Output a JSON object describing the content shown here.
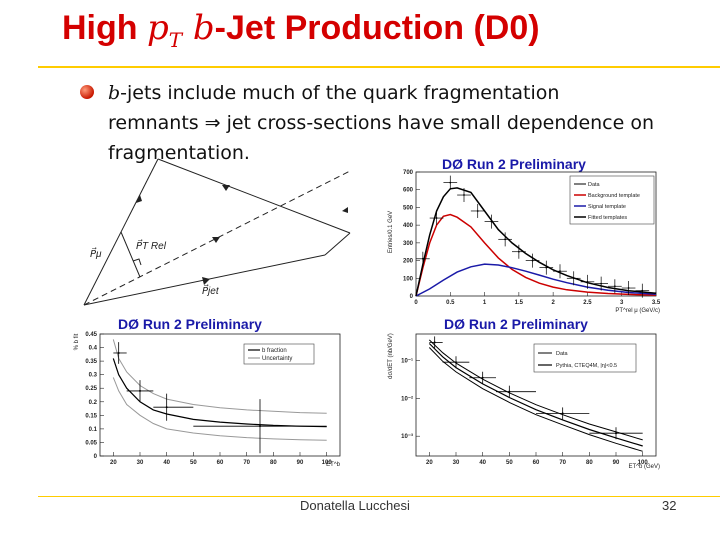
{
  "title": {
    "prefix": "High ",
    "math": "p",
    "math_sub": "T",
    "math2": " b",
    "suffix": "-Jet Production (D0)"
  },
  "bullet": {
    "part1_math": "b",
    "part1": "-jets include much of the quark fragmentation remnants",
    "arrow": "⇒",
    "part2": "jet cross-sections have small dependence on fragmentation."
  },
  "diagram": {
    "label_mu": "P⃗μ",
    "label_trel": "P⃗T Rel",
    "label_jet": "P⃗jet"
  },
  "footer": {
    "author": "Donatella Lucchesi",
    "page": "32"
  },
  "colors": {
    "title": "#d40000",
    "rule": "#ffcc00",
    "preliminary": "#1a1aa8",
    "background_template": "#cc0000",
    "signal_template": "#1a1aa8"
  },
  "chart_data": [
    {
      "type": "line",
      "title": "DØ Run 2 Preliminary",
      "xlabel": "PT^rel μ (GeV/c)",
      "ylabel": "Entries/0.1 GeV",
      "xlim": [
        0,
        3.5
      ],
      "ylim": [
        0,
        700
      ],
      "xticks": [
        "0",
        "0.5",
        "1",
        "1.5",
        "2",
        "2.5",
        "3",
        "3.5"
      ],
      "yticks": [
        "0",
        "100",
        "200",
        "300",
        "400",
        "500",
        "600",
        "700"
      ],
      "legend": [
        "Data",
        "Background template",
        "Signal template",
        "Fitted templates"
      ],
      "data_points": {
        "x": [
          0.1,
          0.3,
          0.5,
          0.7,
          0.9,
          1.1,
          1.3,
          1.5,
          1.7,
          1.9,
          2.1,
          2.3,
          2.5,
          2.7,
          2.9,
          3.1,
          3.3
        ],
        "y": [
          210,
          440,
          640,
          570,
          480,
          420,
          320,
          250,
          200,
          160,
          140,
          100,
          80,
          70,
          55,
          45,
          30
        ]
      },
      "series": [
        {
          "name": "Background template",
          "x": [
            0,
            0.1,
            0.2,
            0.3,
            0.4,
            0.5,
            0.6,
            0.8,
            1.0,
            1.2,
            1.4,
            1.6,
            1.8,
            2.0,
            2.2,
            2.5,
            2.8,
            3.1,
            3.5
          ],
          "y": [
            0,
            160,
            300,
            400,
            450,
            460,
            445,
            390,
            300,
            215,
            150,
            105,
            72,
            50,
            35,
            22,
            14,
            9,
            5
          ]
        },
        {
          "name": "Signal template",
          "x": [
            0,
            0.2,
            0.4,
            0.6,
            0.8,
            1.0,
            1.2,
            1.4,
            1.6,
            1.8,
            2.0,
            2.2,
            2.5,
            2.8,
            3.1,
            3.5
          ],
          "y": [
            0,
            40,
            90,
            135,
            165,
            180,
            175,
            160,
            140,
            118,
            95,
            75,
            50,
            32,
            20,
            10
          ]
        },
        {
          "name": "Fitted templates",
          "x": [
            0,
            0.1,
            0.2,
            0.3,
            0.4,
            0.5,
            0.6,
            0.8,
            1.0,
            1.2,
            1.4,
            1.6,
            1.8,
            2.0,
            2.2,
            2.5,
            2.8,
            3.1,
            3.5
          ],
          "y": [
            0,
            180,
            345,
            480,
            560,
            605,
            610,
            585,
            480,
            375,
            300,
            240,
            190,
            148,
            115,
            75,
            48,
            30,
            16
          ]
        }
      ]
    },
    {
      "type": "line",
      "title": "DØ Run 2 Preliminary",
      "xlabel": "ET^b",
      "ylabel": "% b fit",
      "xlim": [
        15,
        105
      ],
      "ylim": [
        0,
        0.45
      ],
      "xticks": [
        "20",
        "30",
        "40",
        "50",
        "60",
        "70",
        "80",
        "90",
        "100"
      ],
      "yticks": [
        "0",
        "0.05",
        "0.1",
        "0.15",
        "0.2",
        "0.25",
        "0.3",
        "0.35",
        "0.4",
        "0.45"
      ],
      "legend": [
        "b fraction",
        "Uncertainty"
      ],
      "points": {
        "x": [
          22,
          30,
          40,
          75
        ],
        "y": [
          0.38,
          0.24,
          0.18,
          0.11
        ],
        "xerr_low": [
          20,
          25,
          35,
          50
        ],
        "xerr_high": [
          25,
          35,
          50,
          100
        ],
        "yerr": [
          0.04,
          0.04,
          0.05,
          0.1
        ]
      },
      "series": [
        {
          "name": "b fraction",
          "x": [
            20,
            22,
            25,
            30,
            35,
            40,
            50,
            60,
            70,
            80,
            90,
            100
          ],
          "y": [
            0.36,
            0.3,
            0.25,
            0.2,
            0.17,
            0.155,
            0.135,
            0.125,
            0.118,
            0.113,
            0.11,
            0.108
          ]
        },
        {
          "name": "Uncertainty",
          "x": [
            20,
            22,
            25,
            30,
            35,
            40,
            50,
            60,
            70,
            80,
            90,
            100
          ],
          "y": [
            0.43,
            0.36,
            0.31,
            0.26,
            0.23,
            0.21,
            0.19,
            0.178,
            0.17,
            0.165,
            0.16,
            0.158
          ]
        },
        {
          "name": "Uncertainty",
          "x": [
            20,
            22,
            25,
            30,
            35,
            40,
            50,
            60,
            70,
            80,
            90,
            100
          ],
          "y": [
            0.29,
            0.24,
            0.19,
            0.15,
            0.12,
            0.1,
            0.085,
            0.075,
            0.068,
            0.063,
            0.06,
            0.058
          ]
        }
      ]
    },
    {
      "type": "line",
      "title": "DØ Run 2 Preliminary",
      "xlabel": "ET^b (GeV)",
      "ylabel": "dσ/dET (nb/GeV)",
      "scale": "log",
      "xlim": [
        15,
        105
      ],
      "xticks": [
        "20",
        "30",
        "40",
        "50",
        "60",
        "70",
        "80",
        "90",
        "100"
      ],
      "yticks": [
        "10⁻¹",
        "10⁻²",
        "10⁻³"
      ],
      "legend": [
        "Data",
        "Pythia, CTEQ4M, |η|<0.5"
      ],
      "points": {
        "x": [
          22,
          30,
          40,
          50,
          70,
          90
        ],
        "y": [
          0.3,
          0.09,
          0.035,
          0.015,
          0.004,
          0.0012
        ],
        "xerr_low": [
          20,
          25,
          35,
          45,
          60,
          80
        ],
        "xerr_high": [
          25,
          35,
          45,
          60,
          80,
          100
        ]
      },
      "series": [
        {
          "name": "Pythia, CTEQ4M, |η|<0.5",
          "x": [
            20,
            25,
            30,
            40,
            50,
            60,
            70,
            80,
            90,
            100
          ],
          "y": [
            0.35,
            0.16,
            0.085,
            0.032,
            0.014,
            0.0068,
            0.0037,
            0.0021,
            0.0013,
            0.0008
          ]
        },
        {
          "name": "Pythia, CTEQ4M, |η|<0.5",
          "x": [
            20,
            25,
            30,
            40,
            50,
            60,
            70,
            80,
            90,
            100
          ],
          "y": [
            0.28,
            0.125,
            0.065,
            0.024,
            0.0105,
            0.005,
            0.0027,
            0.0015,
            0.0009,
            0.00055
          ]
        },
        {
          "name": "Pythia, CTEQ4M, |η|<0.5",
          "x": [
            20,
            25,
            30,
            40,
            50,
            60,
            70,
            80,
            90,
            100
          ],
          "y": [
            0.22,
            0.095,
            0.05,
            0.018,
            0.0078,
            0.0037,
            0.002,
            0.0011,
            0.00065,
            0.0004
          ]
        }
      ]
    }
  ]
}
